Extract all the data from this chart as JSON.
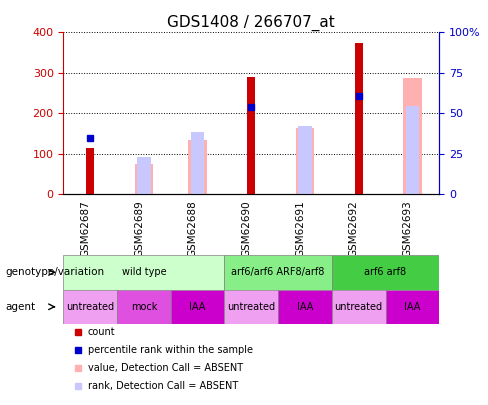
{
  "title": "GDS1408 / 266707_at",
  "samples": [
    "GSM62687",
    "GSM62689",
    "GSM62688",
    "GSM62690",
    "GSM62691",
    "GSM62692",
    "GSM62693"
  ],
  "count_values": [
    115,
    0,
    0,
    290,
    0,
    375,
    0
  ],
  "percentile_values": [
    140,
    0,
    0,
    215,
    0,
    243,
    0
  ],
  "absent_value_bars": [
    0,
    75,
    135,
    0,
    165,
    0,
    288
  ],
  "absent_rank_bars": [
    0,
    93,
    153,
    0,
    168,
    0,
    218
  ],
  "count_color": "#cc0000",
  "percentile_color": "#0000cc",
  "absent_value_color": "#ffb0b0",
  "absent_rank_color": "#c8c8ff",
  "ylim": [
    0,
    400
  ],
  "yticks_left": [
    0,
    100,
    200,
    300,
    400
  ],
  "yticks_right_vals": [
    0,
    100,
    200,
    300,
    400
  ],
  "yticks_right_labels": [
    "0",
    "25",
    "50",
    "75",
    "100%"
  ],
  "genotype_groups": [
    {
      "label": "wild type",
      "span": [
        0,
        3
      ],
      "color": "#ccffcc"
    },
    {
      "label": "arf6/arf6 ARF8/arf8",
      "span": [
        3,
        5
      ],
      "color": "#88ee88"
    },
    {
      "label": "arf6 arf8",
      "span": [
        5,
        7
      ],
      "color": "#44cc44"
    }
  ],
  "agent_groups": [
    {
      "label": "untreated",
      "span": [
        0,
        1
      ],
      "color": "#f0a0f0"
    },
    {
      "label": "mock",
      "span": [
        1,
        2
      ],
      "color": "#e050e0"
    },
    {
      "label": "IAA",
      "span": [
        2,
        3
      ],
      "color": "#cc00cc"
    },
    {
      "label": "untreated",
      "span": [
        3,
        4
      ],
      "color": "#f0a0f0"
    },
    {
      "label": "IAA",
      "span": [
        4,
        5
      ],
      "color": "#cc00cc"
    },
    {
      "label": "untreated",
      "span": [
        5,
        6
      ],
      "color": "#f0a0f0"
    },
    {
      "label": "IAA",
      "span": [
        6,
        7
      ],
      "color": "#cc00cc"
    }
  ],
  "legend_items": [
    {
      "label": "count",
      "color": "#cc0000"
    },
    {
      "label": "percentile rank within the sample",
      "color": "#0000cc"
    },
    {
      "label": "value, Detection Call = ABSENT",
      "color": "#ffb0b0"
    },
    {
      "label": "rank, Detection Call = ABSENT",
      "color": "#c8c8ff"
    }
  ]
}
